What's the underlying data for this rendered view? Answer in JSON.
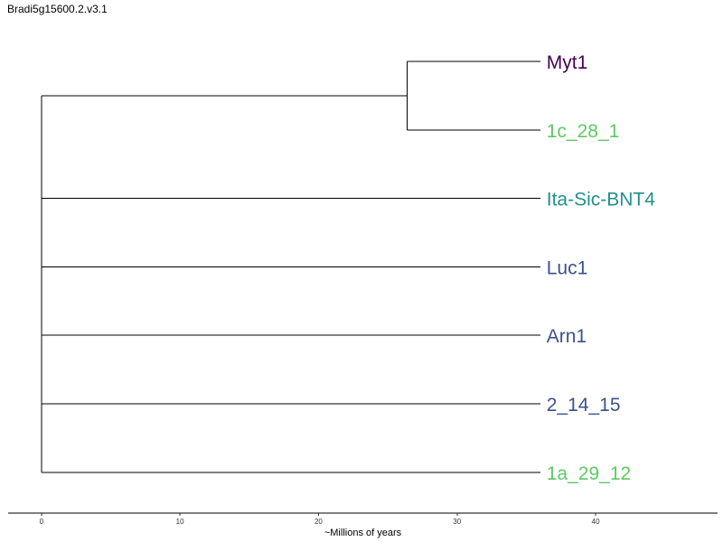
{
  "title": "Bradi5g15600.2.v3.1",
  "chart_data": {
    "type": "dendrogram",
    "xlabel": "~Millions of years",
    "xlim": [
      -2.4,
      48.8
    ],
    "ticks": [
      0,
      10,
      20,
      30,
      40
    ],
    "root_age": 0,
    "tip_age": 36,
    "leaves": [
      {
        "name": "Myt1",
        "color": "#440154"
      },
      {
        "name": "1c_28_1",
        "color": "#5ec962"
      },
      {
        "name": "Ita-Sic-BNT4",
        "color": "#21918c"
      },
      {
        "name": "Luc1",
        "color": "#3b528b"
      },
      {
        "name": "Arn1",
        "color": "#3b528b"
      },
      {
        "name": "2_14_15",
        "color": "#3b528b"
      },
      {
        "name": "1a_29_12",
        "color": "#5ec962"
      }
    ],
    "clades": [
      {
        "members": [
          "Myt1",
          "1c_28_1"
        ],
        "node_age": 26.4
      }
    ]
  }
}
